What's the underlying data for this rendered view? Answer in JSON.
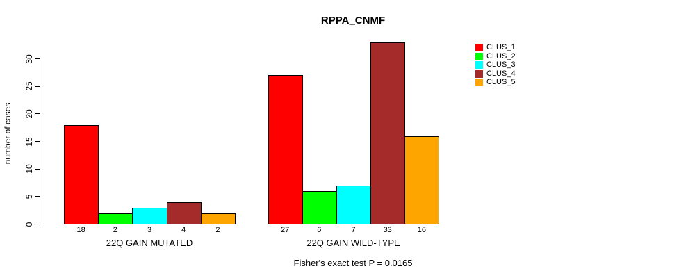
{
  "title": "RPPA_CNMF",
  "y_axis": {
    "label": "number of cases",
    "ticks": [
      0,
      5,
      10,
      15,
      20,
      25,
      30
    ]
  },
  "footer": "Fisher's exact test P = 0.0165",
  "legend": {
    "position": "right",
    "items": [
      {
        "label": "CLUS_1",
        "color": "#FF0000"
      },
      {
        "label": "CLUS_2",
        "color": "#00FF00"
      },
      {
        "label": "CLUS_3",
        "color": "#00FFFF"
      },
      {
        "label": "CLUS_4",
        "color": "#A52A2A"
      },
      {
        "label": "CLUS_5",
        "color": "#FFA500"
      }
    ]
  },
  "chart_data": {
    "type": "bar",
    "title": "RPPA_CNMF",
    "ylabel": "number of cases",
    "ylim": [
      0,
      33
    ],
    "yticks": [
      0,
      5,
      10,
      15,
      20,
      25,
      30
    ],
    "grid": false,
    "legend_position": "right",
    "series_names": [
      "CLUS_1",
      "CLUS_2",
      "CLUS_3",
      "CLUS_4",
      "CLUS_5"
    ],
    "series_colors": [
      "#FF0000",
      "#00FF00",
      "#00FFFF",
      "#A52A2A",
      "#FFA500"
    ],
    "groups": [
      {
        "label": "22Q GAIN MUTATED",
        "values": [
          18,
          2,
          3,
          4,
          2
        ]
      },
      {
        "label": "22Q GAIN WILD-TYPE",
        "values": [
          27,
          6,
          7,
          33,
          16
        ]
      }
    ],
    "annotation": "Fisher's exact test P = 0.0165"
  }
}
